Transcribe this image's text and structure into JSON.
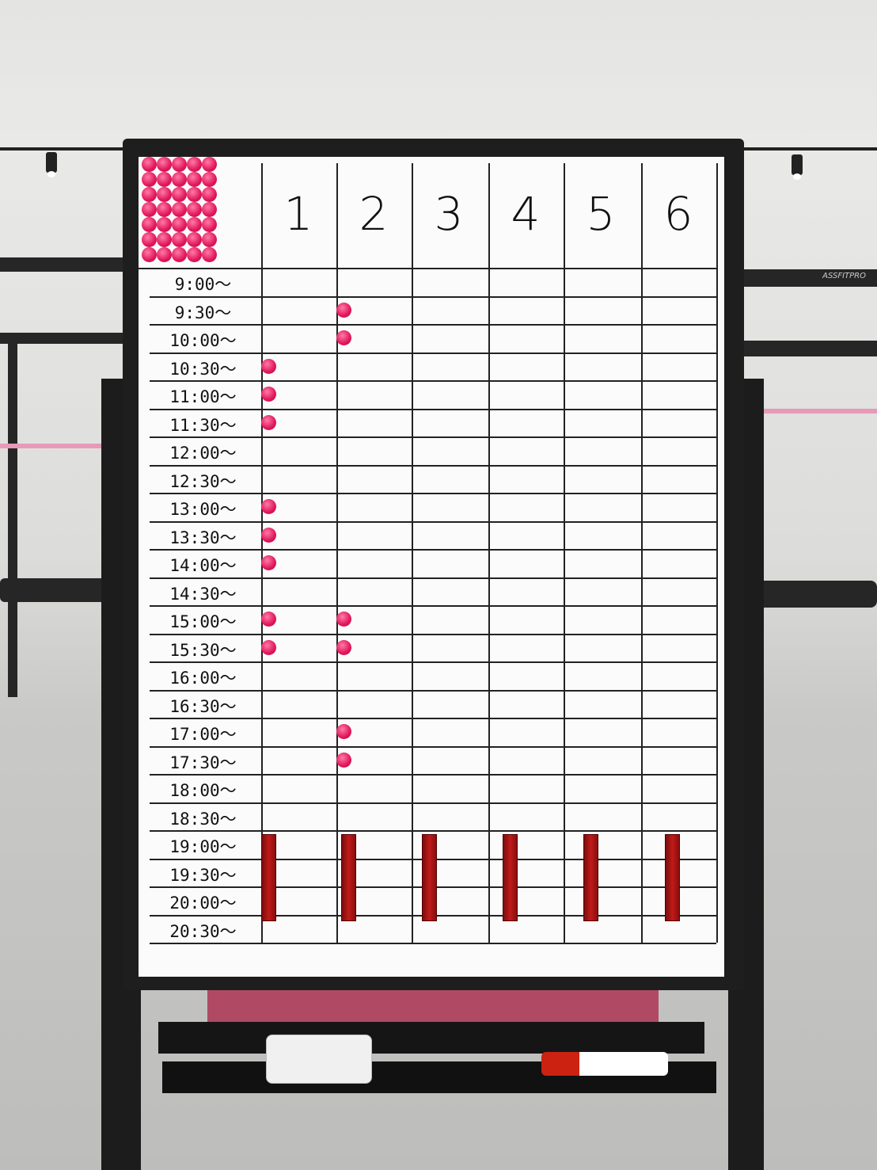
{
  "board": {
    "columns": [
      "1",
      "2",
      "3",
      "4",
      "5",
      "6"
    ],
    "time_slots": [
      "9:00〜",
      "9:30〜",
      "10:00〜",
      "10:30〜",
      "11:00〜",
      "11:30〜",
      "12:00〜",
      "12:30〜",
      "13:00〜",
      "13:30〜",
      "14:00〜",
      "14:30〜",
      "15:00〜",
      "15:30〜",
      "16:00〜",
      "16:30〜",
      "17:00〜",
      "17:30〜",
      "18:00〜",
      "18:30〜",
      "19:00〜",
      "19:30〜",
      "20:00〜",
      "20:30〜"
    ],
    "booked": {
      "1": [
        "10:30〜",
        "11:00〜",
        "11:30〜",
        "13:00〜",
        "13:30〜",
        "14:00〜",
        "15:00〜",
        "15:30〜"
      ],
      "2": [
        "9:30〜",
        "10:00〜",
        "15:00〜",
        "15:30〜",
        "17:00〜",
        "17:30〜"
      ]
    },
    "blocked_slots": [
      "19:00〜",
      "19:30〜",
      "20:00〜",
      "20:30〜"
    ],
    "magnet_color": "#e81c62",
    "blocker_color": "#b01818"
  },
  "background_equipment": {
    "bar_brand": "ASSFITPRO"
  }
}
